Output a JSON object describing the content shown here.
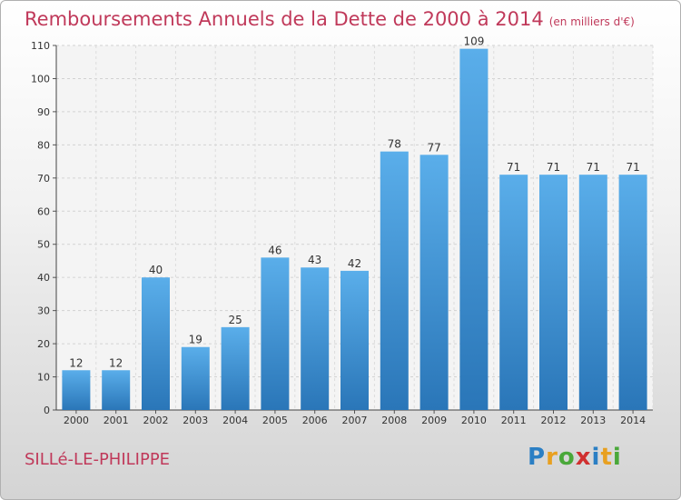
{
  "chart_data": {
    "type": "bar",
    "title": "Remboursements Annuels de la Dette de 2000 à 2014",
    "subtitle": "(en milliers d'€)",
    "categories": [
      "2000",
      "2001",
      "2002",
      "2003",
      "2004",
      "2005",
      "2006",
      "2007",
      "2008",
      "2009",
      "2010",
      "2011",
      "2012",
      "2013",
      "2014"
    ],
    "values": [
      12,
      12,
      40,
      19,
      25,
      46,
      43,
      42,
      78,
      77,
      109,
      71,
      71,
      71,
      71
    ],
    "ylim": [
      0,
      110
    ],
    "yticks": [
      0,
      10,
      20,
      30,
      40,
      50,
      60,
      70,
      80,
      90,
      100,
      110
    ],
    "xlabel": "",
    "ylabel": "",
    "grid": true,
    "bar_color": "#3d8fd6"
  },
  "footer": {
    "town": "SILLé-LE-PHILIPPE",
    "logo_letters": [
      {
        "ch": "P",
        "color": "#2b7fc4"
      },
      {
        "ch": "r",
        "color": "#e8a020"
      },
      {
        "ch": "o",
        "color": "#4aa83a"
      },
      {
        "ch": "x",
        "color": "#d03030"
      },
      {
        "ch": "i",
        "color": "#2b7fc4"
      },
      {
        "ch": "t",
        "color": "#e8a020"
      },
      {
        "ch": "i",
        "color": "#4aa83a"
      }
    ]
  }
}
